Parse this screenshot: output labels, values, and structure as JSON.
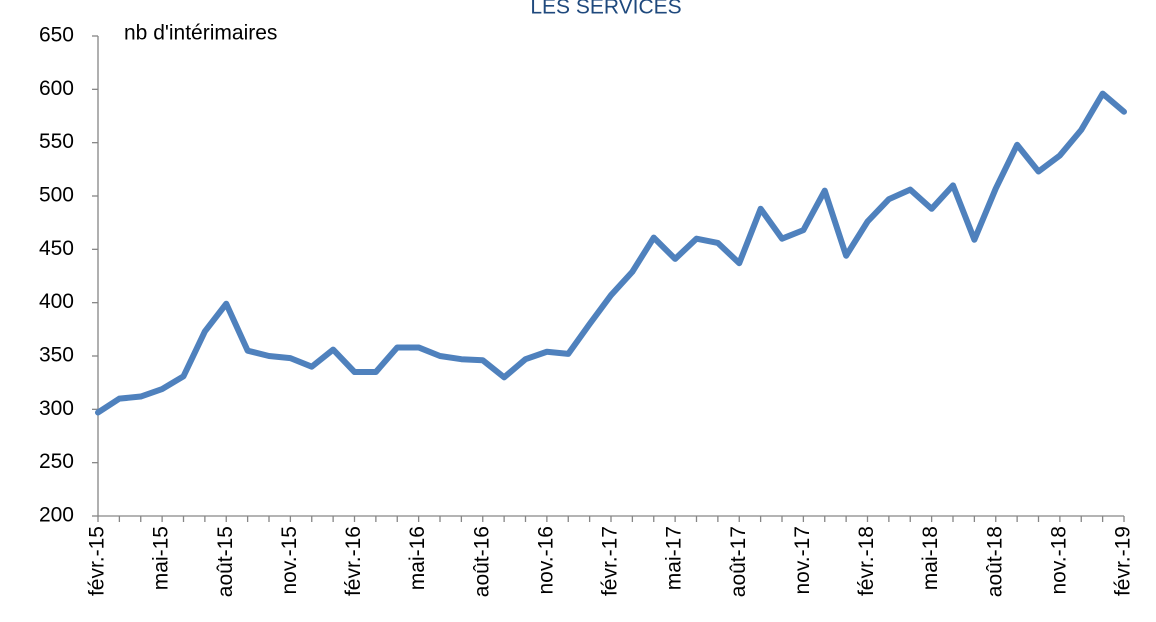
{
  "chart_data": {
    "type": "line",
    "title": "LES SERVICES",
    "y_label": "nb d'intérimaires",
    "categories": [
      "févr.-15",
      null,
      null,
      "mai-15",
      null,
      null,
      "août-15",
      null,
      null,
      "nov.-15",
      null,
      null,
      "févr.-16",
      null,
      null,
      "mai-16",
      null,
      null,
      "août-16",
      null,
      null,
      "nov.-16",
      null,
      null,
      "févr.-17",
      null,
      null,
      "mai-17",
      null,
      null,
      "août-17",
      null,
      null,
      "nov.-17",
      null,
      null,
      "févr.-18",
      null,
      null,
      "mai-18",
      null,
      null,
      "août-18",
      null,
      null,
      "nov.-18",
      null,
      null,
      "févr.-19"
    ],
    "values": [
      297,
      310,
      312,
      319,
      331,
      373,
      399,
      355,
      350,
      348,
      340,
      356,
      335,
      335,
      358,
      358,
      350,
      347,
      346,
      330,
      347,
      354,
      352,
      380,
      407,
      429,
      461,
      441,
      460,
      456,
      437,
      488,
      460,
      468,
      505,
      444,
      476,
      497,
      506,
      488,
      510,
      459,
      507,
      548,
      523,
      538,
      562,
      596,
      579
    ],
    "color": "#4f81bd",
    "ylim": [
      200,
      650
    ],
    "yticks": [
      200,
      250,
      300,
      350,
      400,
      450,
      500,
      550,
      600,
      650
    ]
  }
}
